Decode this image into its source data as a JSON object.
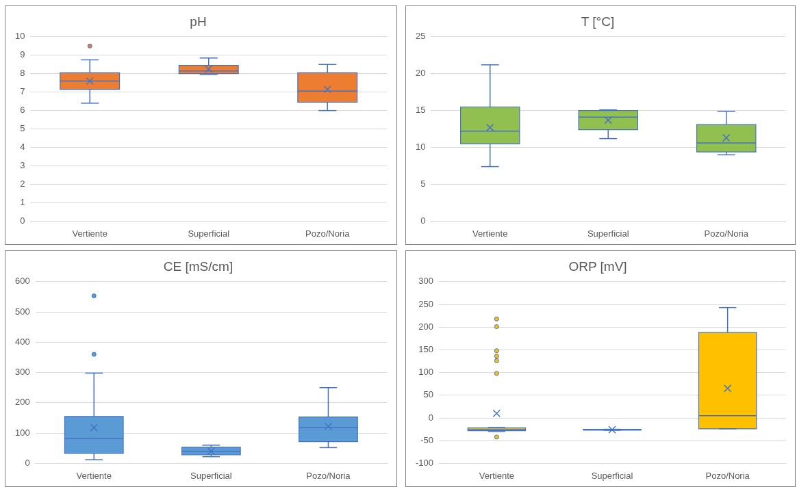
{
  "chart_data": [
    {
      "type": "box",
      "title": "pH",
      "categories": [
        "Vertiente",
        "Superficial",
        "Pozo/Noria"
      ],
      "color": "#ed7d31",
      "ylim": [
        0,
        10
      ],
      "yticks": [
        0,
        1,
        2,
        3,
        4,
        5,
        6,
        7,
        8,
        9,
        10
      ],
      "grid": "y",
      "legend": false,
      "boxes": [
        {
          "low": 6.4,
          "q1": 7.15,
          "median": 7.6,
          "q3": 8.05,
          "high": 8.75,
          "mean": 7.6,
          "outliers": [
            9.5
          ]
        },
        {
          "low": 7.95,
          "q1": 8.0,
          "median": 8.15,
          "q3": 8.45,
          "high": 8.85,
          "mean": 8.25
        },
        {
          "low": 6.0,
          "q1": 6.45,
          "median": 7.05,
          "q3": 8.05,
          "high": 8.5,
          "mean": 7.15
        }
      ]
    },
    {
      "type": "box",
      "title": "T [°C]",
      "categories": [
        "Vertiente",
        "Superficial",
        "Pozo/Noria"
      ],
      "color": "#92c050",
      "ylim": [
        0,
        25
      ],
      "yticks": [
        0,
        5,
        10,
        15,
        20,
        25
      ],
      "grid": "y",
      "legend": false,
      "boxes": [
        {
          "low": 7.4,
          "q1": 10.5,
          "median": 12.2,
          "q3": 15.5,
          "high": 21.2,
          "mean": 12.7
        },
        {
          "low": 11.2,
          "q1": 12.4,
          "median": 14.1,
          "q3": 15.0,
          "high": 15.1,
          "mean": 13.7
        },
        {
          "low": 9.0,
          "q1": 9.4,
          "median": 10.6,
          "q3": 13.1,
          "high": 14.9,
          "mean": 11.3
        }
      ]
    },
    {
      "type": "box",
      "title": "CE [mS/cm]",
      "categories": [
        "Vertiente",
        "Superficial",
        "Pozo/Noria"
      ],
      "color": "#5b9bd5",
      "ylim": [
        0,
        600
      ],
      "yticks": [
        0,
        100,
        200,
        300,
        400,
        500,
        600
      ],
      "grid": "y",
      "legend": false,
      "boxes": [
        {
          "low": 12,
          "q1": 33,
          "median": 82,
          "q3": 155,
          "high": 298,
          "mean": 118,
          "outliers": [
            360,
            553
          ]
        },
        {
          "low": 22,
          "q1": 28,
          "median": 40,
          "q3": 53,
          "high": 60,
          "mean": 40
        },
        {
          "low": 52,
          "q1": 72,
          "median": 118,
          "q3": 153,
          "high": 250,
          "mean": 122
        }
      ]
    },
    {
      "type": "box",
      "title": "ORP [mV]",
      "categories": [
        "Vertiente",
        "Superficial",
        "Pozo/Noria"
      ],
      "color": "#ffc000",
      "ylim": [
        -100,
        300
      ],
      "yticks": [
        -100,
        -50,
        0,
        50,
        100,
        150,
        200,
        250,
        300
      ],
      "grid": "y",
      "legend": false,
      "boxes": [
        {
          "low": -30,
          "q1": -28,
          "median": -26,
          "q3": -22,
          "high": -21,
          "mean": 10,
          "outliers": [
            -42,
            98,
            126,
            136,
            148,
            201,
            218
          ]
        },
        {
          "low": -27,
          "q1": -27,
          "median": -26,
          "q3": -25,
          "high": -25,
          "mean": -26
        },
        {
          "low": -24,
          "q1": -24,
          "median": 5,
          "q3": 188,
          "high": 243,
          "mean": 65
        }
      ]
    }
  ]
}
